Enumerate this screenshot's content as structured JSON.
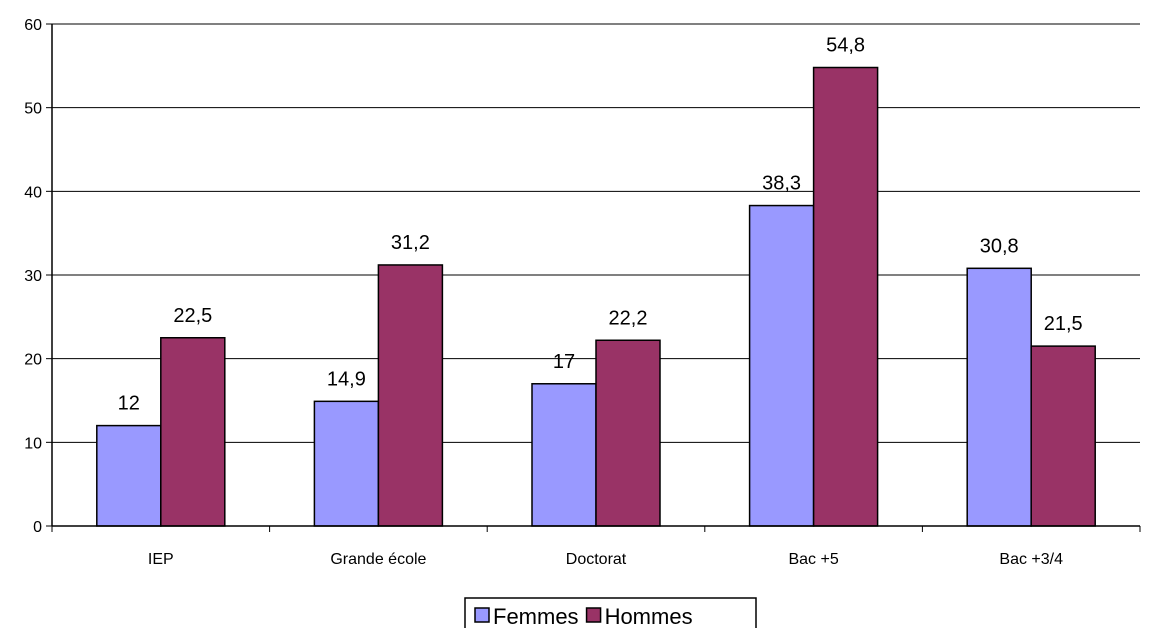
{
  "chart_data": {
    "type": "bar",
    "categories": [
      "IEP",
      "Grande école",
      "Doctorat",
      "Bac +5",
      "Bac +3/4"
    ],
    "series": [
      {
        "name": "Femmes",
        "color": "#9999ff",
        "values": [
          12,
          14.9,
          17,
          38.3,
          30.8
        ],
        "labels": [
          "12",
          "14,9",
          "17",
          "38,3",
          "30,8"
        ]
      },
      {
        "name": "Hommes",
        "color": "#993366",
        "values": [
          22.5,
          31.2,
          22.2,
          54.8,
          21.5
        ],
        "labels": [
          "22,5",
          "31,2",
          "22,2",
          "54,8",
          "21,5"
        ]
      }
    ],
    "ylim": [
      0,
      60
    ],
    "yticks": [
      0,
      10,
      20,
      30,
      40,
      50,
      60
    ],
    "grid": true,
    "legend_position": "bottom-center"
  }
}
